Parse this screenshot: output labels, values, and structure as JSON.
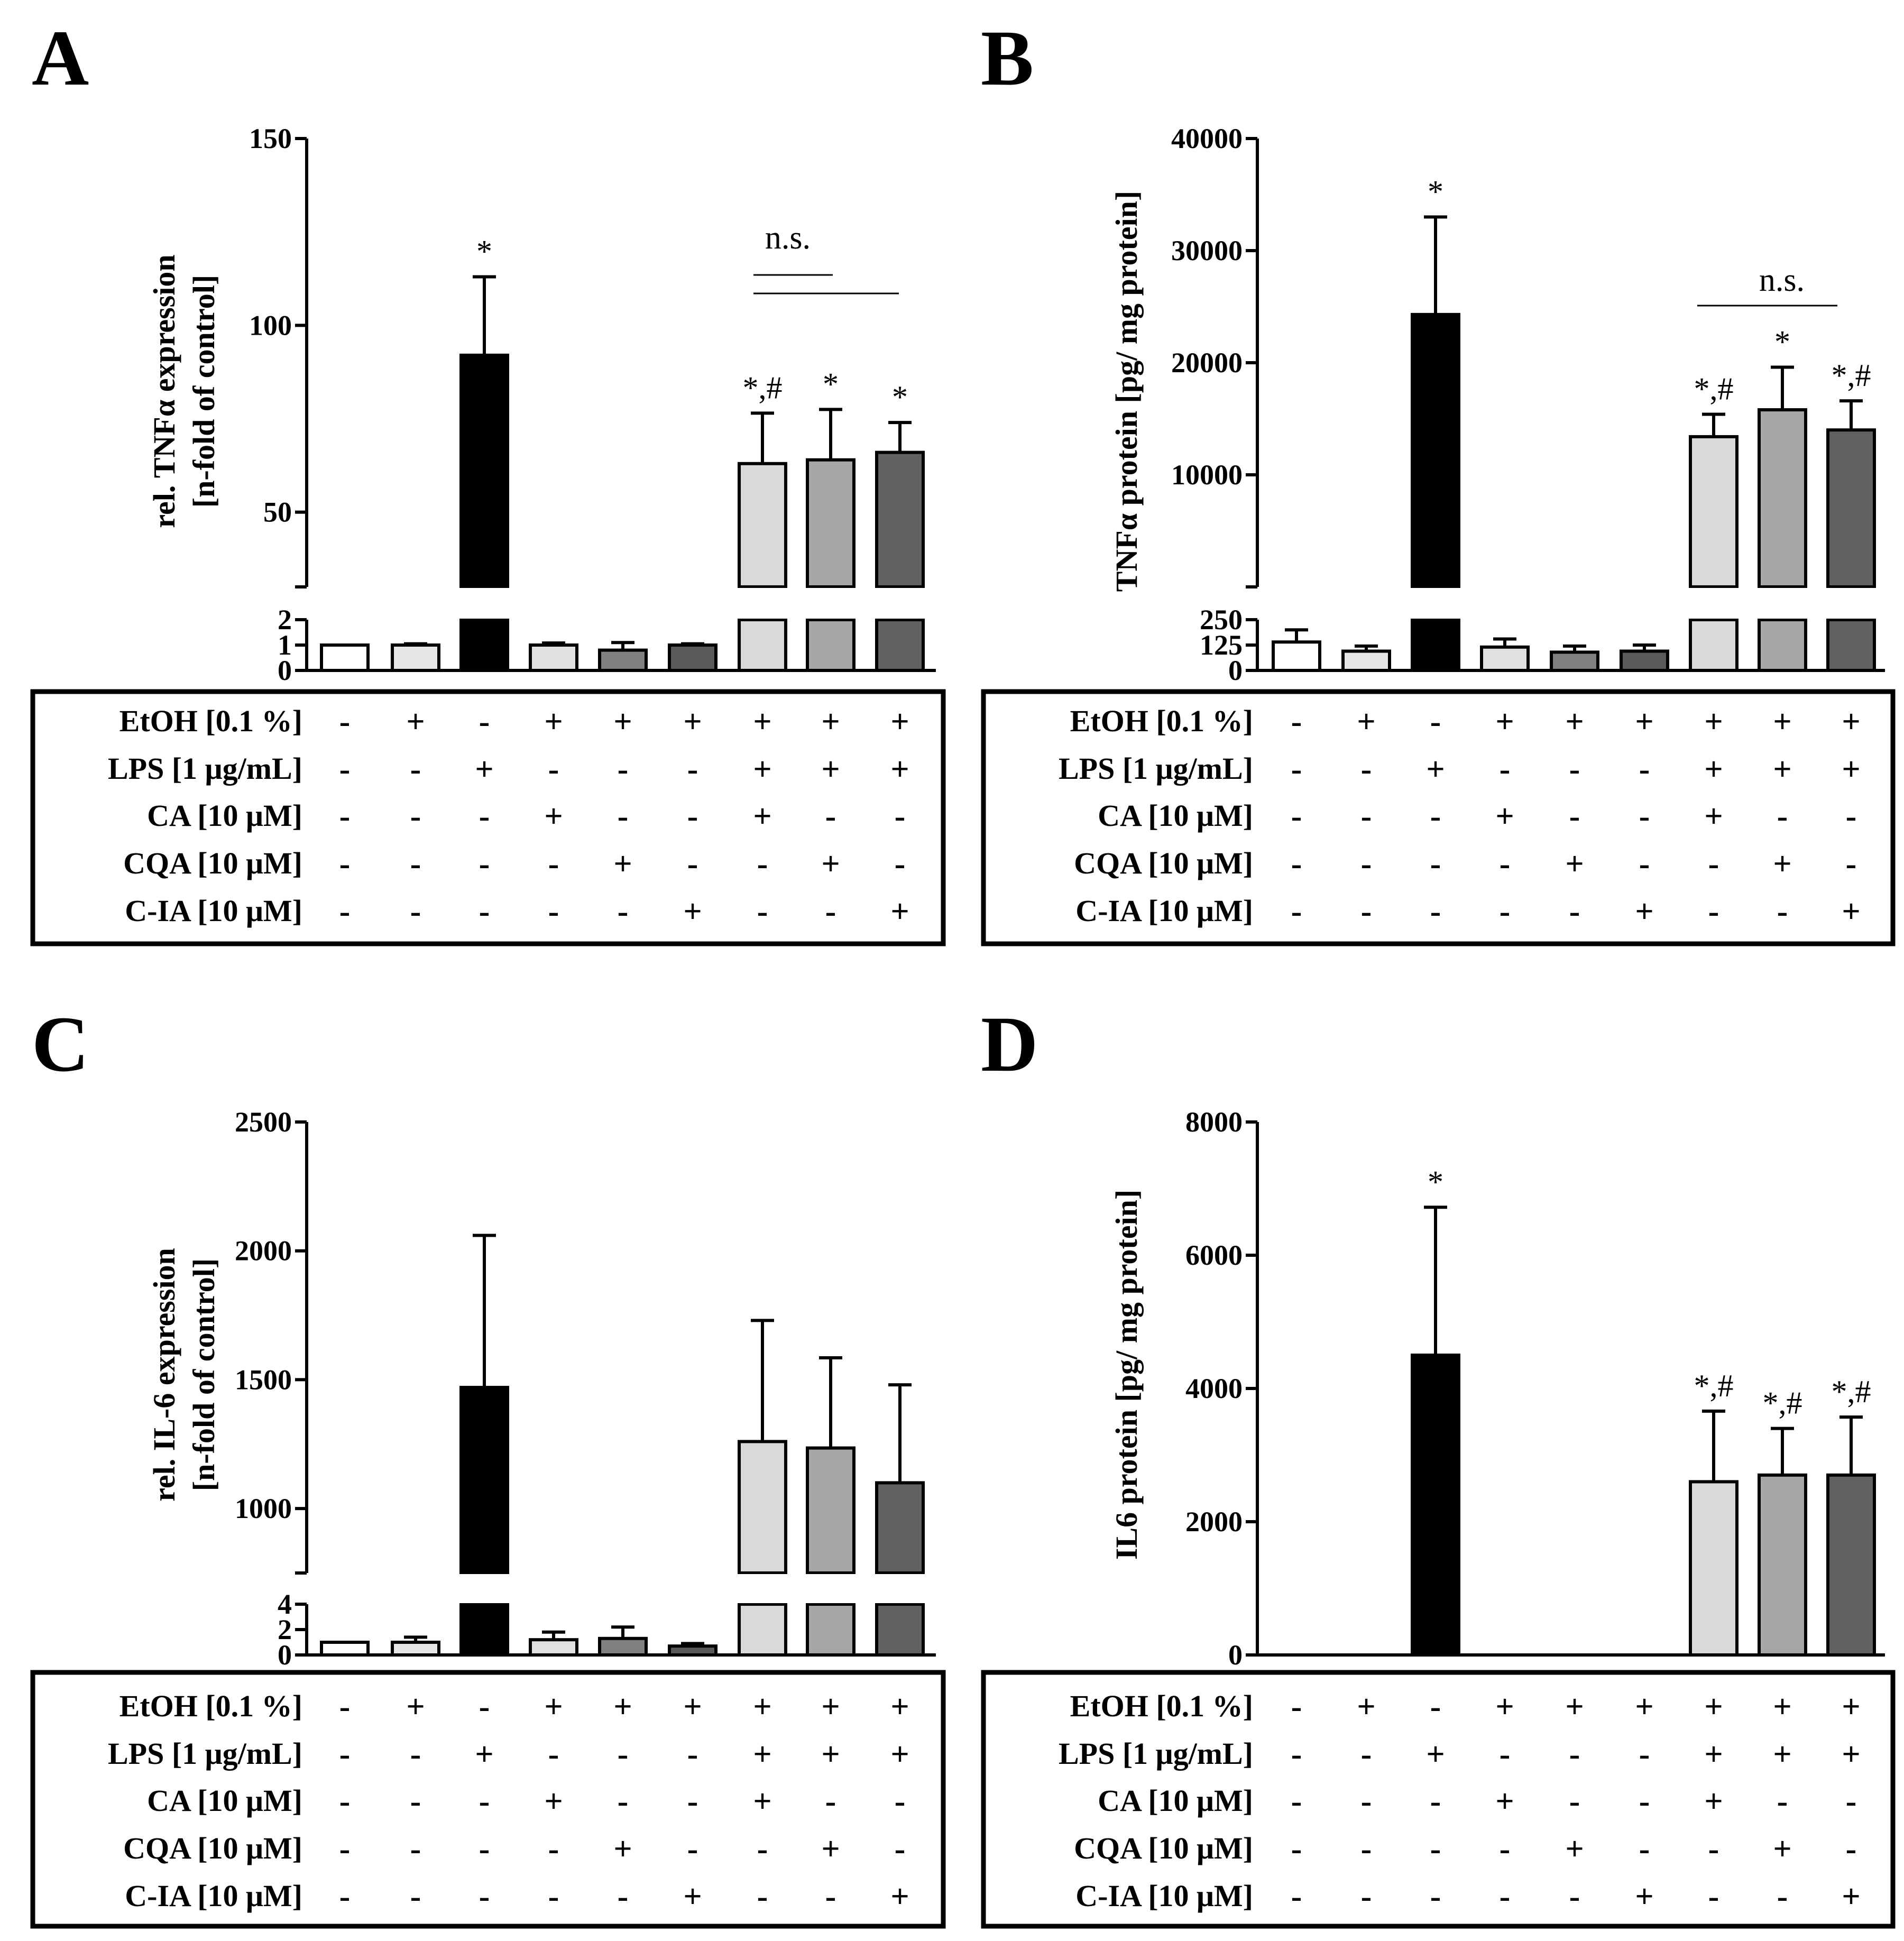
{
  "colors": {
    "bar_fills": [
      "#ffffff",
      "#e6e6e6",
      "#000000",
      "#e0e0e0",
      "#808080",
      "#595959",
      "#d9d9d9",
      "#a6a6a6",
      "#616161"
    ]
  },
  "row_labels": [
    "EtOH [0.1 %]",
    "LPS [1 μg/mL]",
    "CA [10 μM]",
    "CQA [10 μM]",
    "C-IA [10 μM]"
  ],
  "treatments": [
    [
      "-",
      "+",
      "-",
      "+",
      "+",
      "+",
      "+",
      "+",
      "+"
    ],
    [
      "-",
      "-",
      "+",
      "-",
      "-",
      "-",
      "+",
      "+",
      "+"
    ],
    [
      "-",
      "-",
      "-",
      "+",
      "-",
      "-",
      "+",
      "-",
      "-"
    ],
    [
      "-",
      "-",
      "-",
      "-",
      "+",
      "-",
      "-",
      "+",
      "-"
    ],
    [
      "-",
      "-",
      "-",
      "-",
      "-",
      "+",
      "-",
      "-",
      "+"
    ]
  ],
  "chart_data": [
    {
      "panel": "A",
      "type": "bar",
      "axis_break": true,
      "ylabel": "rel. TNFα expression",
      "ylabel2": "[n-fold of control]",
      "ylim_lower": [
        0,
        2
      ],
      "ylim_upper": [
        30,
        150
      ],
      "ticks_lower": [
        "0",
        "1",
        "2"
      ],
      "ticks_upper": [
        "50",
        "100",
        "150"
      ],
      "values": [
        1.0,
        1.0,
        92,
        1.0,
        0.8,
        1.0,
        63,
        64,
        66
      ],
      "errors": [
        0,
        0.05,
        21,
        0.08,
        0.3,
        0.05,
        13.5,
        13.5,
        8
      ],
      "markers": [
        "",
        "",
        "*",
        "",
        "",
        "",
        "*,#",
        "*",
        "*"
      ],
      "ns_label": "n.s."
    },
    {
      "panel": "B",
      "type": "bar",
      "axis_break": true,
      "ylabel": "TNFα  protein [pg/ mg protein]",
      "ylim_lower": [
        0,
        250
      ],
      "ylim_upper": [
        0,
        40000
      ],
      "ticks_lower": [
        "0",
        "125",
        "250"
      ],
      "ticks_upper": [
        "10000",
        "20000",
        "30000",
        "40000"
      ],
      "values": [
        140,
        95,
        24300,
        115,
        90,
        95,
        13400,
        15800,
        14000
      ],
      "errors": [
        60,
        25,
        8700,
        40,
        30,
        30,
        2000,
        3800,
        2600
      ],
      "markers": [
        "",
        "",
        "*",
        "",
        "",
        "",
        "*,#",
        "*",
        "*,#"
      ],
      "ns_label": "n.s."
    },
    {
      "panel": "C",
      "type": "bar",
      "axis_break": true,
      "ylabel": "rel. IL-6 expression",
      "ylabel2": "[n-fold of control]",
      "ylim_lower": [
        0,
        4
      ],
      "ylim_upper": [
        750,
        2500
      ],
      "ticks_lower": [
        "0",
        "2",
        "4"
      ],
      "ticks_upper": [
        "1000",
        "1500",
        "2000",
        "2500"
      ],
      "values": [
        1.0,
        1.0,
        1470,
        1.2,
        1.3,
        0.7,
        1260,
        1235,
        1100
      ],
      "errors": [
        0,
        0.4,
        590,
        0.6,
        0.9,
        0.2,
        470,
        350,
        380
      ],
      "markers": [
        "",
        "",
        "",
        "",
        "",
        "",
        "",
        "",
        ""
      ]
    },
    {
      "panel": "D",
      "type": "bar",
      "axis_break": false,
      "ylabel": "IL6 protein [pg/ mg protein]",
      "ylim": [
        0,
        8000
      ],
      "ticks": [
        "0",
        "2000",
        "4000",
        "6000",
        "8000"
      ],
      "values": [
        0,
        0,
        4500,
        0,
        0,
        0,
        2600,
        2700,
        2700
      ],
      "errors": [
        0,
        0,
        2220,
        0,
        0,
        0,
        1060,
        700,
        870
      ],
      "markers": [
        "",
        "",
        "*",
        "",
        "",
        "",
        "*,#",
        "*,#",
        "*,#"
      ]
    }
  ]
}
